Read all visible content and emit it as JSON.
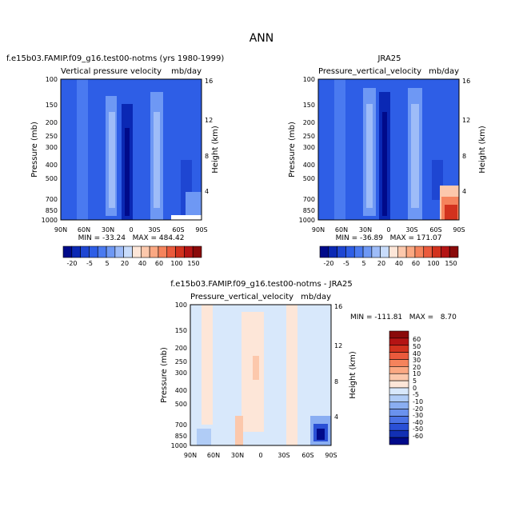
{
  "figure": {
    "title": "ANN"
  },
  "chart_data": [
    {
      "type": "heatmap",
      "case_title": "f.e15b03.FAMIP.f09_g16.test00-notms (yrs 1980-1999)",
      "variable_title": "Vertical pressure velocity",
      "units": "mb/day",
      "ylabel": "Pressure (mb)",
      "ylabel_right": "Height (km)",
      "x_ticks": [
        "90N",
        "60N",
        "30N",
        "0",
        "30S",
        "60S",
        "90S"
      ],
      "y_ticks": [
        "100",
        "150",
        "200",
        "250",
        "300",
        "400",
        "500",
        "700",
        "850",
        "1000"
      ],
      "y_ticks_right": [
        "16",
        "12",
        "8",
        "4"
      ],
      "stats": "MIN = -33.24   MAX = 484.42",
      "min": -33.24,
      "max": 484.42,
      "colorbar_labels": [
        "-20",
        "-5",
        "5",
        "20",
        "40",
        "60",
        "100",
        "150"
      ]
    },
    {
      "type": "heatmap",
      "case_title": "JRA25",
      "variable_title": "Pressure_vertical_velocity",
      "units": "mb/day",
      "ylabel": "Pressure (mb)",
      "ylabel_right": "Height (km)",
      "x_ticks": [
        "90N",
        "60N",
        "30N",
        "0",
        "30S",
        "60S",
        "90S"
      ],
      "y_ticks": [
        "100",
        "150",
        "200",
        "250",
        "300",
        "400",
        "500",
        "700",
        "850",
        "1000"
      ],
      "y_ticks_right": [
        "16",
        "12",
        "8",
        "4"
      ],
      "stats": "MIN = -36.89   MAX = 171.07",
      "min": -36.89,
      "max": 171.07,
      "colorbar_labels": [
        "-20",
        "-5",
        "5",
        "20",
        "40",
        "60",
        "100",
        "150"
      ]
    },
    {
      "type": "heatmap",
      "case_title": "f.e15b03.FAMIP.f09_g16.test00-notms - JRA25",
      "variable_title": "Pressure_vertical_velocity",
      "units": "mb/day",
      "ylabel": "Pressure (mb)",
      "ylabel_right": "Height (km)",
      "x_ticks": [
        "90N",
        "60N",
        "30N",
        "0",
        "30S",
        "60S",
        "90S"
      ],
      "y_ticks": [
        "100",
        "150",
        "200",
        "250",
        "300",
        "400",
        "500",
        "700",
        "850",
        "1000"
      ],
      "y_ticks_right": [
        "16",
        "12",
        "8",
        "4"
      ],
      "stats": "MIN = -111.81   MAX =   8.70",
      "min": -111.81,
      "max": 8.7,
      "colorbar_labels": [
        "60",
        "50",
        "40",
        "30",
        "20",
        "10",
        "5",
        "0",
        "-5",
        "-10",
        "-20",
        "-30",
        "-40",
        "-50",
        "-60"
      ]
    }
  ],
  "colors": {
    "diverging_top": [
      "#000a8a",
      "#0a28b4",
      "#1e46d2",
      "#2e5ee6",
      "#4a7af0",
      "#6e98f4",
      "#9ebcf8",
      "#c8dcfb",
      "#fde6d8",
      "#fcc8ac",
      "#fba882",
      "#f5835c",
      "#ea5a3c",
      "#d2321e",
      "#b41414",
      "#8a0a0a"
    ],
    "diverging_diff": [
      "#8a0a0a",
      "#b41414",
      "#d2321e",
      "#ea5a3c",
      "#f5835c",
      "#fba882",
      "#fcc8ac",
      "#fde6d8",
      "#d8e8fb",
      "#b0ccf6",
      "#8aaef2",
      "#6a92ee",
      "#4a72e6",
      "#2a50d6",
      "#1230b4",
      "#000a8a"
    ],
    "field_base": "#2e5ee6",
    "diff_base": "#d8e8fb"
  }
}
